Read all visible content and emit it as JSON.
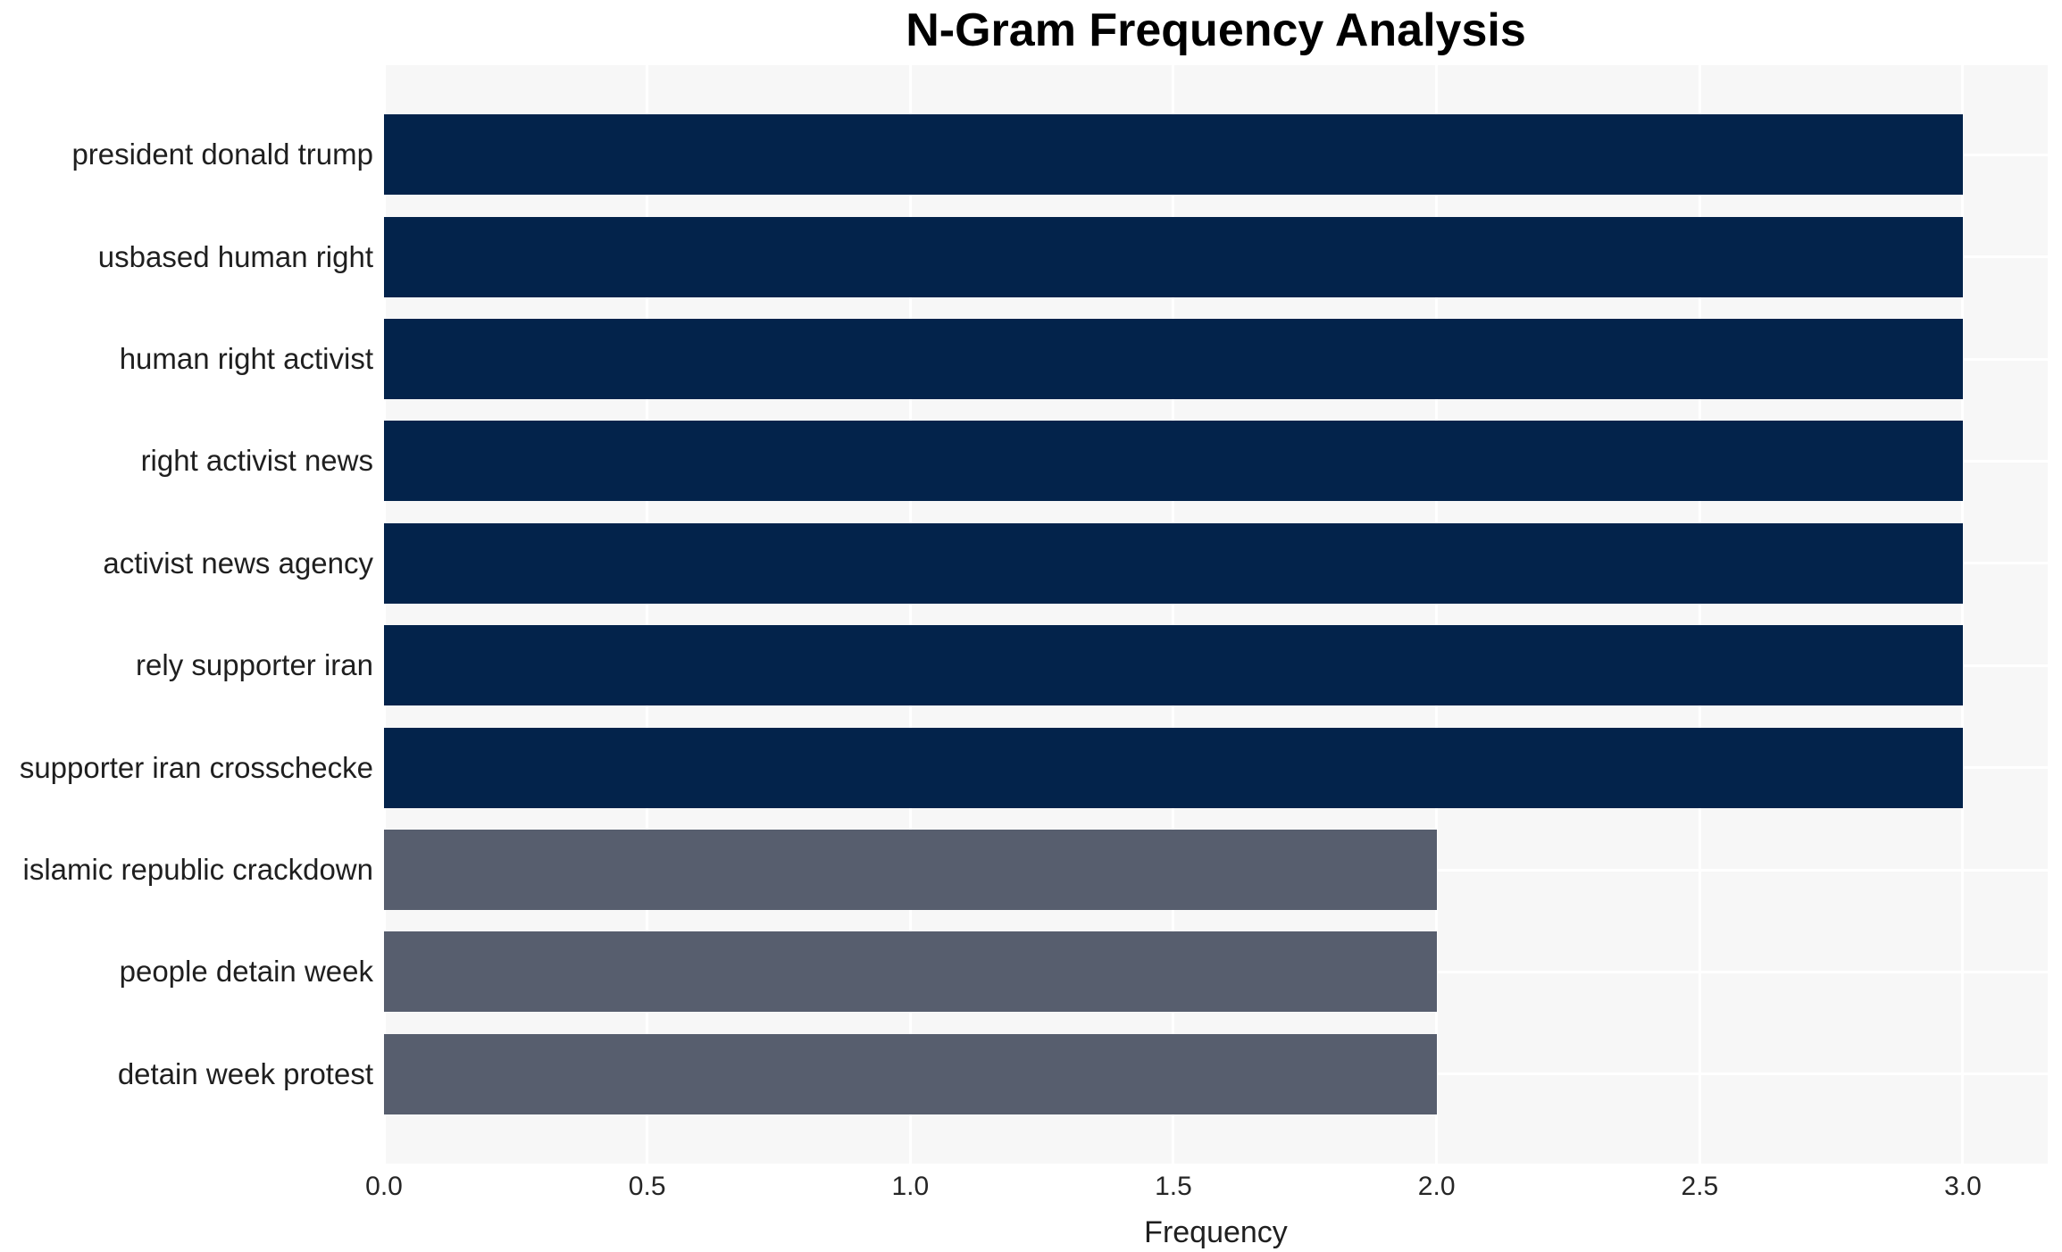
{
  "title": "N-Gram Frequency Analysis",
  "chart_data": {
    "type": "bar",
    "orientation": "horizontal",
    "title": "N-Gram Frequency Analysis",
    "xlabel": "Frequency",
    "ylabel": "",
    "categories": [
      "president donald trump",
      "usbased human right",
      "human right activist",
      "right activist news",
      "activist news agency",
      "rely supporter iran",
      "supporter iran crosschecke",
      "islamic republic crackdown",
      "people detain week",
      "detain week protest"
    ],
    "values": [
      3,
      3,
      3,
      3,
      3,
      3,
      3,
      2,
      2,
      2
    ],
    "bar_colors": [
      "#03234b",
      "#03234b",
      "#03234b",
      "#03234b",
      "#03234b",
      "#03234b",
      "#03234b",
      "#575e6e",
      "#575e6e",
      "#575e6e"
    ],
    "xlim": [
      0.0,
      3.16
    ],
    "xtick_values": [
      0.0,
      0.5,
      1.0,
      1.5,
      2.0,
      2.5,
      3.0
    ],
    "xtick_labels": [
      "0.0",
      "0.5",
      "1.0",
      "1.5",
      "2.0",
      "2.5",
      "3.0"
    ],
    "grid": true,
    "legend": "none",
    "colors": {
      "high_frequency_bar": "#03234b",
      "low_frequency_bar": "#575e6e",
      "plot_background": "#f7f7f7",
      "gridline": "#ffffff",
      "text": "#1f1f1f",
      "title_text": "#000000"
    }
  }
}
